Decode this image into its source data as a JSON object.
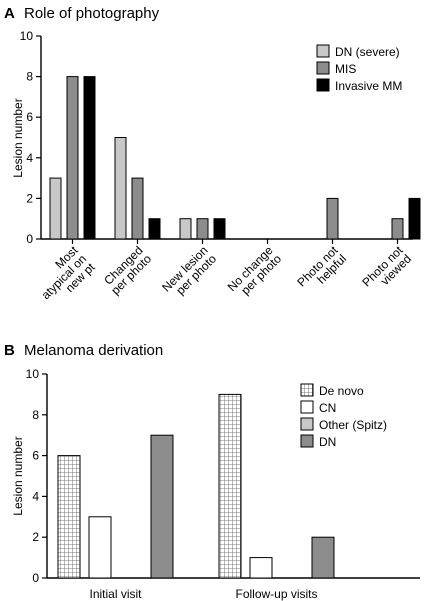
{
  "colors": {
    "light_gray": "#c8c8c8",
    "mid_gray": "#8c8c8c",
    "black": "#000000",
    "white": "#ffffff"
  },
  "chart_data": [
    {
      "panel_letter": "A",
      "title": "Role of photography",
      "type": "bar",
      "ylabel": "Lesion number",
      "ylim": [
        0,
        10
      ],
      "yticks": [
        0,
        2,
        4,
        6,
        8,
        10
      ],
      "categories": [
        "Most atypical on new pt",
        "Changed per photo",
        "New lesion per photo",
        "No change per photo",
        "Photo not helpful",
        "Photo not viewed"
      ],
      "category_lines": [
        [
          "Most",
          "atypical on",
          "new pt"
        ],
        [
          "Changed",
          "per photo"
        ],
        [
          "New lesion",
          "per photo"
        ],
        [
          "No change",
          "per photo"
        ],
        [
          "Photo not",
          "helpful"
        ],
        [
          "Photo not",
          "viewed"
        ]
      ],
      "series": [
        {
          "name": "DN (severe)",
          "fill": "light_gray",
          "values": [
            3,
            5,
            1,
            0,
            0,
            0
          ]
        },
        {
          "name": "MIS",
          "fill": "mid_gray",
          "values": [
            8,
            3,
            1,
            0,
            2,
            1
          ]
        },
        {
          "name": "Invasive MM",
          "fill": "black",
          "values": [
            8,
            1,
            1,
            0,
            0,
            2
          ]
        }
      ],
      "legend_position": "top-right",
      "grid": false
    },
    {
      "panel_letter": "B",
      "title": "Melanoma derivation",
      "type": "bar",
      "ylabel": "Lesion number",
      "ylim": [
        0,
        10
      ],
      "yticks": [
        0,
        2,
        4,
        6,
        8,
        10
      ],
      "categories": [
        "Initial visit",
        "Follow-up visits"
      ],
      "series": [
        {
          "name": "De novo",
          "fill": "grid",
          "values": [
            6,
            9
          ]
        },
        {
          "name": "CN",
          "fill": "white",
          "values": [
            3,
            1
          ]
        },
        {
          "name": "Other (Spitz)",
          "fill": "light_gray",
          "values": [
            0,
            0
          ]
        },
        {
          "name": "DN",
          "fill": "mid_gray",
          "values": [
            7,
            2
          ]
        }
      ],
      "legend_position": "top-right",
      "grid": false
    }
  ]
}
